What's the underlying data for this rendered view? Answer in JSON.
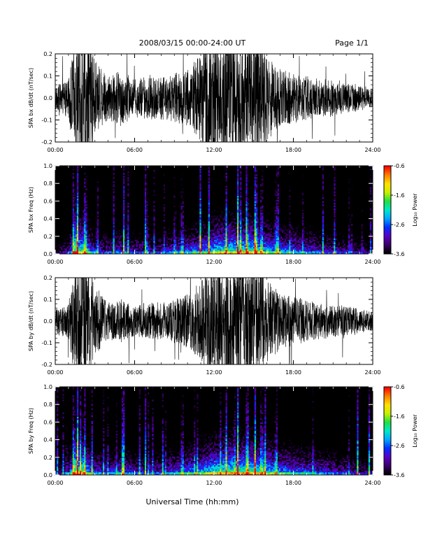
{
  "header": {
    "date_range": "2008/03/15  00:00-24:00 UT",
    "page": "Page 1/1"
  },
  "footer": {
    "xlabel": "Universal Time (hh:mm)"
  },
  "colors": {
    "trace": "#000000",
    "spectrogram_background": "#000000",
    "colormap": [
      "#000000",
      "#3a006a",
      "#5a00c8",
      "#0030ff",
      "#00a8ff",
      "#00e8c8",
      "#20e040",
      "#c8f000",
      "#ffe000",
      "#ff8000",
      "#ff0000"
    ]
  },
  "chart_data": [
    {
      "type": "line",
      "title": "",
      "ylabel": "SPA bx dB/dt (nT/sec)",
      "xlabel": "",
      "xlim": [
        "00:00",
        "24:00"
      ],
      "x_ticks": [
        "00:00",
        "06:00",
        "12:00",
        "18:00",
        "24:00"
      ],
      "ylim": [
        -0.2,
        0.2
      ],
      "y_ticks": [
        "-0.2",
        "-0.1",
        "0.0",
        "0.1",
        "0.2"
      ],
      "grid": false,
      "series": [
        {
          "x_hours": [
            0,
            1,
            1.5,
            2,
            2.5,
            3,
            4,
            5,
            6,
            7,
            8,
            9,
            10,
            11,
            11.5,
            12,
            13,
            14,
            15,
            15.5,
            16,
            17,
            18,
            19,
            20,
            21,
            22,
            23,
            24
          ],
          "envelope_amplitude": [
            0.04,
            0.06,
            0.2,
            0.2,
            0.2,
            0.12,
            0.07,
            0.09,
            0.06,
            0.07,
            0.07,
            0.08,
            0.09,
            0.14,
            0.2,
            0.2,
            0.2,
            0.2,
            0.2,
            0.2,
            0.14,
            0.09,
            0.08,
            0.07,
            0.06,
            0.06,
            0.05,
            0.04,
            0.03
          ]
        }
      ]
    },
    {
      "type": "heatmap",
      "title": "",
      "ylabel": "SPA bx Freq (Hz)",
      "xlabel": "",
      "xlim": [
        "00:00",
        "24:00"
      ],
      "x_ticks": [
        "00:00",
        "06:00",
        "12:00",
        "18:00",
        "24:00"
      ],
      "ylim": [
        0.0,
        1.0
      ],
      "y_ticks": [
        "0.0",
        "0.2",
        "0.4",
        "0.6",
        "0.8",
        "1.0"
      ],
      "colorbar": {
        "label": "Log₁₀ Power",
        "range": [
          -3.6,
          -0.6
        ],
        "ticks": [
          "-0.6",
          "-1.6",
          "-2.6",
          "-3.6"
        ]
      },
      "activity_profile": {
        "x_hours": [
          0,
          1,
          1.5,
          2,
          2.5,
          3,
          4,
          5,
          6,
          7,
          8,
          9,
          10,
          11,
          12,
          13,
          14,
          15,
          16,
          17,
          18,
          19,
          20,
          21,
          22,
          23,
          24
        ],
        "relative_power": [
          0.25,
          0.4,
          0.95,
          0.85,
          0.7,
          0.5,
          0.45,
          0.55,
          0.45,
          0.45,
          0.45,
          0.55,
          0.6,
          0.7,
          0.8,
          0.85,
          0.85,
          0.85,
          0.75,
          0.65,
          0.6,
          0.55,
          0.5,
          0.45,
          0.4,
          0.35,
          0.3
        ]
      }
    },
    {
      "type": "line",
      "title": "",
      "ylabel": "SPA by dB/dt (nT/sec)",
      "xlabel": "",
      "xlim": [
        "00:00",
        "24:00"
      ],
      "x_ticks": [
        "00:00",
        "06:00",
        "12:00",
        "18:00",
        "24:00"
      ],
      "ylim": [
        -0.2,
        0.2
      ],
      "y_ticks": [
        "-0.2",
        "-0.1",
        "0.0",
        "0.1",
        "0.2"
      ],
      "grid": false,
      "series": [
        {
          "x_hours": [
            0,
            1,
            1.5,
            2,
            2.5,
            3,
            4,
            5,
            6,
            7,
            8,
            9,
            10,
            11,
            11.5,
            12,
            13,
            14,
            15,
            15.5,
            16,
            17,
            18,
            19,
            20,
            21,
            22,
            23,
            24
          ],
          "envelope_amplitude": [
            0.04,
            0.06,
            0.2,
            0.2,
            0.2,
            0.12,
            0.06,
            0.07,
            0.05,
            0.06,
            0.06,
            0.07,
            0.09,
            0.13,
            0.18,
            0.2,
            0.2,
            0.2,
            0.2,
            0.2,
            0.14,
            0.09,
            0.08,
            0.07,
            0.06,
            0.05,
            0.05,
            0.04,
            0.03
          ]
        }
      ]
    },
    {
      "type": "heatmap",
      "title": "",
      "ylabel": "SPA by Freq (Hz)",
      "xlabel": "",
      "xlim": [
        "00:00",
        "24:00"
      ],
      "x_ticks": [
        "00:00",
        "06:00",
        "12:00",
        "18:00",
        "24:00"
      ],
      "ylim": [
        0.0,
        1.0
      ],
      "y_ticks": [
        "0.0",
        "0.2",
        "0.4",
        "0.6",
        "0.8",
        "1.0"
      ],
      "colorbar": {
        "label": "Log₁₀ Power",
        "range": [
          -3.6,
          -0.6
        ],
        "ticks": [
          "-0.6",
          "-1.6",
          "-2.6",
          "-3.6"
        ]
      },
      "activity_profile": {
        "x_hours": [
          0,
          1,
          1.5,
          2,
          2.5,
          3,
          4,
          5,
          6,
          7,
          8,
          9,
          10,
          11,
          12,
          13,
          14,
          15,
          16,
          17,
          18,
          19,
          20,
          21,
          22,
          23,
          24
        ],
        "relative_power": [
          0.3,
          0.45,
          1.0,
          0.9,
          0.75,
          0.55,
          0.5,
          0.6,
          0.5,
          0.45,
          0.5,
          0.6,
          0.65,
          0.75,
          0.85,
          0.9,
          0.9,
          0.9,
          0.8,
          0.7,
          0.65,
          0.6,
          0.55,
          0.5,
          0.45,
          0.4,
          0.35
        ]
      }
    }
  ]
}
